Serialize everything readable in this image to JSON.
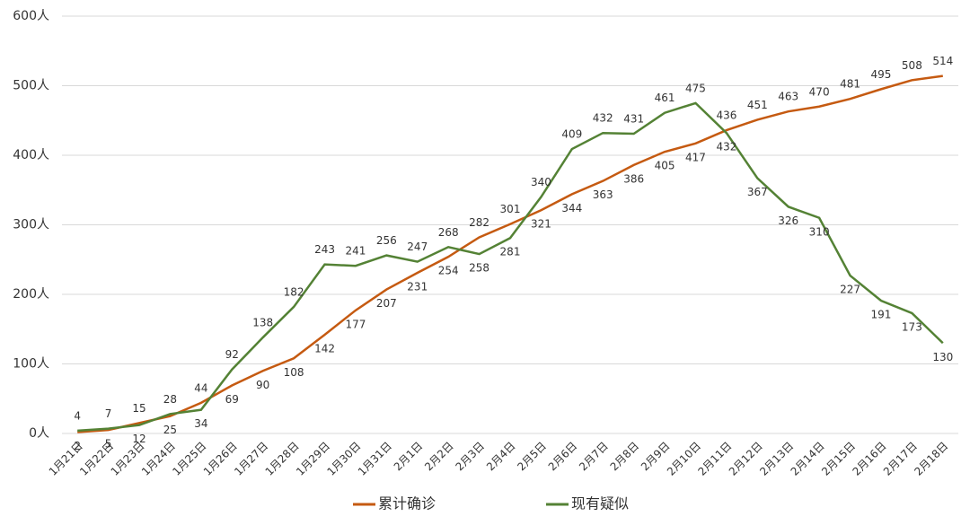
{
  "chart_data": {
    "type": "line",
    "categories": [
      "1月21日",
      "1月22日",
      "1月23日",
      "1月24日",
      "1月25日",
      "1月26日",
      "1月27日",
      "1月28日",
      "1月29日",
      "1月30日",
      "1月31日",
      "2月1日",
      "2月2日",
      "2月3日",
      "2月4日",
      "2月5日",
      "2月6日",
      "2月7日",
      "2月8日",
      "2月9日",
      "2月10日",
      "2月11日",
      "2月12日",
      "2月13日",
      "2月14日",
      "2月15日",
      "2月16日",
      "2月17日",
      "2月18日"
    ],
    "series": [
      {
        "name": "累计确诊",
        "color": "#c55a11",
        "values": [
          2,
          5,
          15,
          25,
          44,
          69,
          90,
          108,
          142,
          177,
          207,
          231,
          254,
          282,
          301,
          321,
          344,
          363,
          386,
          405,
          417,
          436,
          451,
          463,
          470,
          481,
          495,
          508,
          514
        ]
      },
      {
        "name": "现有疑似",
        "color": "#548235",
        "values": [
          4,
          7,
          12,
          28,
          34,
          92,
          138,
          182,
          243,
          241,
          256,
          247,
          268,
          258,
          281,
          340,
          409,
          432,
          431,
          461,
          475,
          432,
          367,
          326,
          310,
          227,
          191,
          173,
          130
        ]
      }
    ],
    "ylim": [
      0,
      600
    ],
    "yticks": [
      {
        "value": 0,
        "label": "0人"
      },
      {
        "value": 100,
        "label": "100人"
      },
      {
        "value": 200,
        "label": "200人"
      },
      {
        "value": 300,
        "label": "300人"
      },
      {
        "value": 400,
        "label": "400人"
      },
      {
        "value": 500,
        "label": "500人"
      },
      {
        "value": 600,
        "label": "600人"
      }
    ],
    "grid": true
  }
}
